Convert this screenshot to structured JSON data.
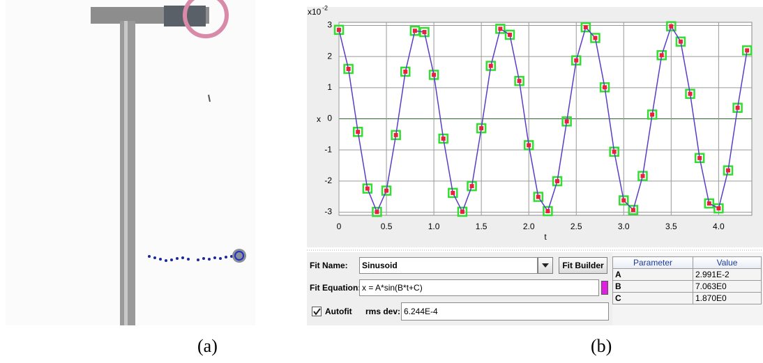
{
  "panel_a": {
    "caption": "(a)"
  },
  "panel_b": {
    "caption": "(b)",
    "chart_data": {
      "type": "scatter",
      "x_label": "t",
      "y_label": "x",
      "y_multiplier": "x10",
      "y_multiplier_exponent": "-2",
      "x": [
        0,
        0.1,
        0.2,
        0.3,
        0.4,
        0.5,
        0.6,
        0.7,
        0.8,
        0.9,
        1.0,
        1.1,
        1.2,
        1.3,
        1.4,
        1.5,
        1.6,
        1.7,
        1.8,
        1.9,
        2.0,
        2.1,
        2.2,
        2.3,
        2.4,
        2.5,
        2.6,
        2.7,
        2.8,
        2.9,
        3.0,
        3.1,
        3.2,
        3.3,
        3.4,
        3.5,
        3.6,
        3.7,
        3.8,
        3.9,
        4.0,
        4.1,
        4.2,
        4.3
      ],
      "series": [
        {
          "color": "#e8203a",
          "edge_color": "#33dd33",
          "line_color": "#5a3cc8",
          "values": [
            2.858,
            1.602,
            -0.42,
            -2.241,
            -2.991,
            -2.308,
            -0.522,
            1.514,
            2.827,
            2.786,
            1.412,
            -0.637,
            -2.381,
            -2.986,
            -2.163,
            -0.304,
            1.7,
            2.89,
            2.699,
            1.215,
            -0.849,
            -2.508,
            -2.966,
            -2.005,
            -0.085,
            1.876,
            2.94,
            2.597,
            1.011,
            -1.058,
            -2.621,
            -2.929,
            -1.837,
            0.135,
            2.042,
            2.972,
            2.48,
            0.802,
            -1.26,
            -2.719,
            -2.877,
            -1.658,
            0.354,
            2.197
          ]
        }
      ],
      "xlim": [
        0,
        4.35
      ],
      "ylim": [
        -3.1,
        3.1
      ],
      "xticks": [
        0,
        0.5,
        {
          "value": 1,
          "label": "1.0"
        },
        1.5,
        {
          "value": 2,
          "label": "2.0"
        },
        2.5,
        {
          "value": 3,
          "label": "3.0"
        },
        3.5,
        {
          "value": 4,
          "label": "4.0"
        }
      ],
      "yticks": [
        -3,
        -2,
        -1,
        0,
        1,
        2,
        3
      ],
      "grid": true
    },
    "fit": {
      "name_label": "Fit Name:",
      "name": "Sinusoid",
      "builder_button": "Fit Builder",
      "equation_label": "Fit Equation:",
      "equation": "x = A*sin(B*t+C)",
      "autofit": "Autofit",
      "rms_label": "rms dev:",
      "rms": "6.244E-4"
    },
    "table": {
      "header": [
        "Parameter",
        "Value"
      ],
      "rows": [
        [
          "A",
          "2.991E-2"
        ],
        [
          "B",
          "7.063E0"
        ],
        [
          "C",
          "1.870E0"
        ]
      ]
    }
  }
}
